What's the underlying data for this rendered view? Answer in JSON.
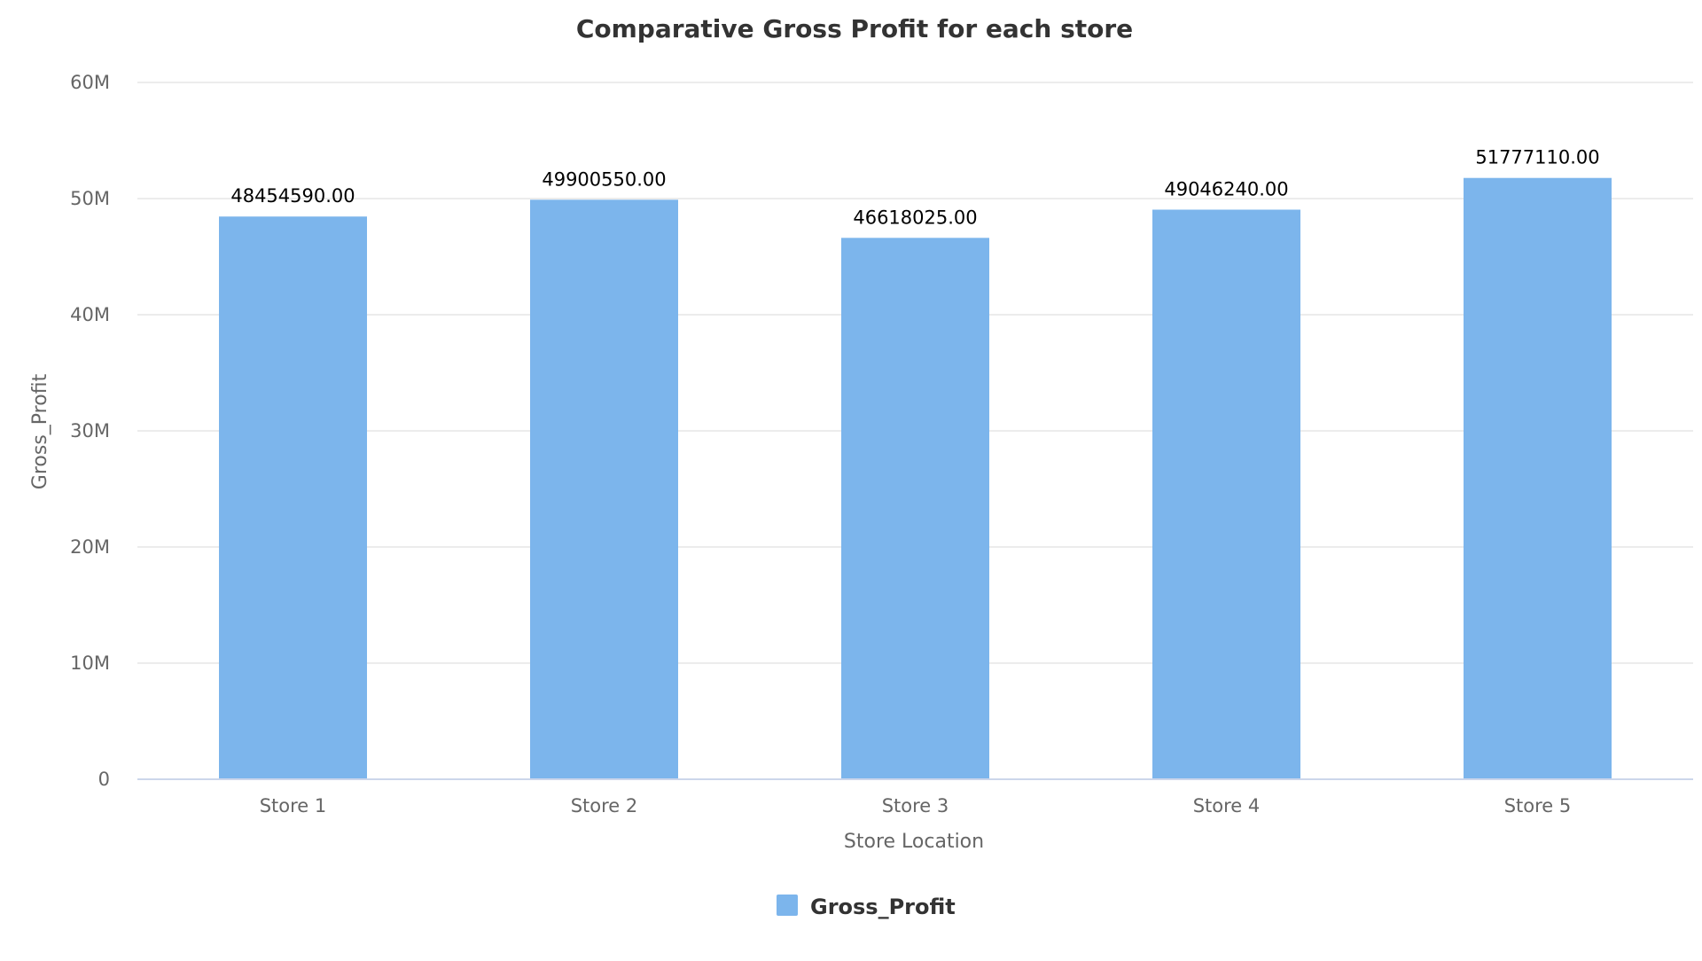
{
  "chart_data": {
    "type": "bar",
    "title": "Comparative Gross Profit for each store",
    "xlabel": "Store Location",
    "ylabel": "Gross_Profit",
    "categories": [
      "Store 1",
      "Store 2",
      "Store 3",
      "Store 4",
      "Store 5"
    ],
    "series": [
      {
        "name": "Gross_Profit",
        "color": "#7cb5ec",
        "values": [
          48454590.0,
          49900550.0,
          46618025.0,
          49046240.0,
          51777110.0
        ],
        "value_labels": [
          "48454590.00",
          "49900550.00",
          "46618025.00",
          "49046240.00",
          "51777110.00"
        ]
      }
    ],
    "ylim": [
      0,
      60000000
    ],
    "yticks": [
      0,
      10000000,
      20000000,
      30000000,
      40000000,
      50000000,
      60000000
    ],
    "ytick_labels": [
      "0",
      "10M",
      "20M",
      "30M",
      "40M",
      "50M",
      "60M"
    ],
    "grid": true,
    "legend_position": "bottom-center"
  }
}
